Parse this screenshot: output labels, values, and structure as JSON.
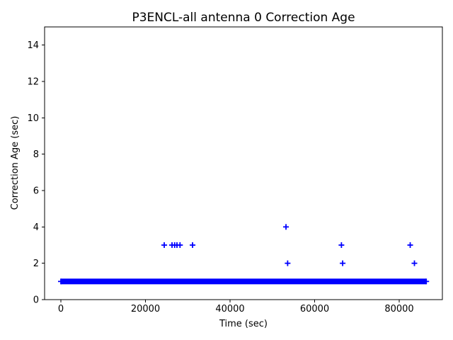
{
  "chart_data": {
    "type": "scatter",
    "title": "P3ENCL-all antenna 0 Correction Age",
    "xlabel": "Time (sec)",
    "ylabel": "Correction Age (sec)",
    "marker_shape": "plus",
    "marker_color": "#0000FF",
    "axis_color": "#000000",
    "background_color": "#FFFFFF",
    "grid": false,
    "legend": "none",
    "xlim": [
      -3850,
      90210
    ],
    "ylim": [
      0,
      15
    ],
    "x_ticks": [
      0,
      20000,
      40000,
      60000,
      80000
    ],
    "y_ticks": [
      0,
      2,
      4,
      6,
      8,
      10,
      12,
      14
    ],
    "series": [
      {
        "name": "baseline-band",
        "note": "dense overlapping + markers forming a solid band",
        "y": 1,
        "x_start": 0,
        "x_end": 86400
      },
      {
        "name": "outliers",
        "points": [
          {
            "x": 24440,
            "y": 3
          },
          {
            "x": 26280,
            "y": 3
          },
          {
            "x": 26900,
            "y": 3
          },
          {
            "x": 27450,
            "y": 3
          },
          {
            "x": 28170,
            "y": 3
          },
          {
            "x": 31140,
            "y": 3
          },
          {
            "x": 53230,
            "y": 4
          },
          {
            "x": 53620,
            "y": 2
          },
          {
            "x": 66340,
            "y": 3
          },
          {
            "x": 66630,
            "y": 2
          },
          {
            "x": 82600,
            "y": 3
          },
          {
            "x": 83600,
            "y": 2
          }
        ]
      }
    ]
  }
}
